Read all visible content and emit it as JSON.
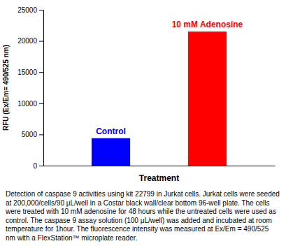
{
  "chart_data": {
    "type": "bar",
    "categories": [
      "Control",
      "10 mM Adenosine"
    ],
    "values": [
      4400,
      21500
    ],
    "colors": [
      "#0000ff",
      "#ff0000"
    ],
    "ylabel": "RFU (Ex/Em= 490/525 nm)",
    "xlabel": "Treatment",
    "ylim": [
      0,
      25000
    ],
    "yticks": [
      0,
      5000,
      10000,
      15000,
      20000,
      25000
    ],
    "grid": false,
    "tick_labels": "y",
    "annotations": [
      "Detection of caspase 9 activities using kit 22799 in Jurkat cells. Jurkat cells were seeded at 200,000/cells/90 μL/well in a Costar black wall/clear bottom 96-well plate. The cells were treated with 10 mM adenosine for 48 hours while the untreated cells were used as control. The caspase 9 assay solution (100 μL/well) was added and incubated at room temperature for 1hour. The fluorescence intensity was measured at Ex/Em = 490/525 nm with a FlexStation™ microplate reader."
    ]
  }
}
